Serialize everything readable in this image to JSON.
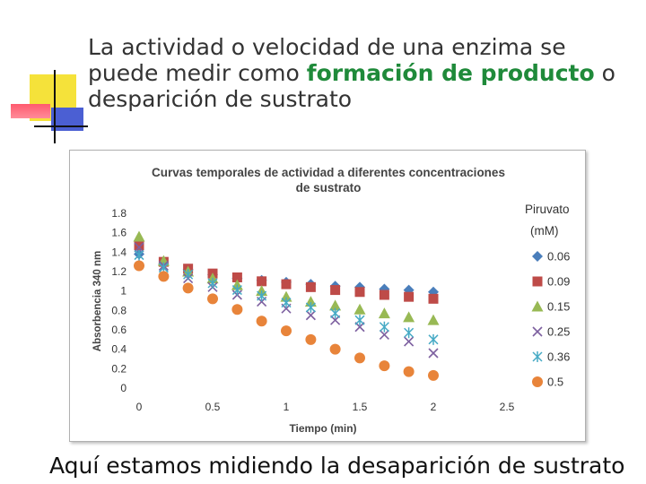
{
  "slide": {
    "title_part1": "La actividad o velocidad de una enzima se puede medir como ",
    "title_highlight": "formación de producto",
    "title_part2": " o desparición de sustrato",
    "footer": "Aquí estamos midiendo la desaparición de sustrato",
    "highlight_color": "#1f8a3a"
  },
  "chart_data": {
    "type": "scatter",
    "title": "Curvas temporales de actividad a diferentes concentraciones de sustrato",
    "title_lines": [
      "Curvas temporales de actividad a diferentes concentraciones",
      "de sustrato"
    ],
    "xlabel": "Tiempo (min)",
    "ylabel": "Absorbencia 340 nm",
    "xlim": [
      0,
      2.5
    ],
    "ylim": [
      0,
      1.8
    ],
    "x_ticks": [
      "0",
      "0.5",
      "1",
      "1.5",
      "2",
      "2.5"
    ],
    "y_ticks": [
      "0",
      "0.2",
      "0.4",
      "0.6",
      "0.8",
      "1",
      "1.2",
      "1.4",
      "1.6",
      "1.8"
    ],
    "legend_title": [
      "Piruvato",
      "(mM)"
    ],
    "legend_position": "right",
    "x": [
      0,
      0.167,
      0.333,
      0.5,
      0.667,
      0.833,
      1.0,
      1.167,
      1.333,
      1.5,
      1.667,
      1.833,
      2.0
    ],
    "series": [
      {
        "name": "0.06",
        "marker": "diamond",
        "color": "#4a7ebb",
        "x": [
          0,
          0.167,
          0.333,
          0.5,
          0.667,
          0.833,
          1.0,
          1.167,
          1.333,
          1.5,
          1.667,
          1.833,
          2.0
        ],
        "values": [
          1.38,
          1.28,
          1.22,
          1.17,
          1.13,
          1.11,
          1.09,
          1.07,
          1.05,
          1.04,
          1.02,
          1.01,
          0.99
        ]
      },
      {
        "name": "0.09",
        "marker": "square",
        "color": "#be4b48",
        "x": [
          0,
          0.167,
          0.333,
          0.5,
          0.667,
          0.833,
          1.0,
          1.167,
          1.333,
          1.5,
          1.667,
          1.833,
          2.0
        ],
        "values": [
          1.47,
          1.3,
          1.23,
          1.18,
          1.14,
          1.1,
          1.07,
          1.04,
          1.01,
          0.99,
          0.96,
          0.94,
          0.92
        ]
      },
      {
        "name": "0.15",
        "marker": "triangle",
        "color": "#98b954",
        "x": [
          0,
          0.167,
          0.333,
          0.5,
          0.667,
          0.833,
          1.0,
          1.167,
          1.333,
          1.5,
          1.667,
          1.833,
          2.0
        ],
        "values": [
          1.56,
          1.31,
          1.2,
          1.13,
          1.06,
          1.0,
          0.94,
          0.89,
          0.85,
          0.81,
          0.77,
          0.73,
          0.7
        ]
      },
      {
        "name": "0.25",
        "marker": "x",
        "color": "#7d60a0",
        "x": [
          0,
          0.167,
          0.333,
          0.5,
          0.667,
          0.833,
          1.0,
          1.167,
          1.333,
          1.5,
          1.667,
          1.833,
          2.0
        ],
        "values": [
          1.45,
          1.26,
          1.13,
          1.04,
          0.96,
          0.89,
          0.82,
          0.75,
          0.7,
          0.63,
          0.55,
          0.48,
          0.36
        ]
      },
      {
        "name": "0.36",
        "marker": "asterisk",
        "color": "#46aac5",
        "x": [
          0,
          0.167,
          0.333,
          0.5,
          0.667,
          0.833,
          1.0,
          1.167,
          1.333,
          1.5,
          1.667,
          1.833,
          2.0
        ],
        "values": [
          1.37,
          1.24,
          1.17,
          1.08,
          1.01,
          0.95,
          0.88,
          0.83,
          0.77,
          0.7,
          0.63,
          0.57,
          0.5
        ]
      },
      {
        "name": "0.5",
        "marker": "circle",
        "color": "#e8843a",
        "x": [
          0,
          0.167,
          0.333,
          0.5,
          0.667,
          0.833,
          1.0,
          1.167,
          1.333,
          1.5,
          1.667,
          1.833,
          2.0
        ],
        "values": [
          1.26,
          1.15,
          1.03,
          0.92,
          0.81,
          0.69,
          0.59,
          0.5,
          0.4,
          0.31,
          0.23,
          0.17,
          0.13
        ]
      }
    ]
  }
}
